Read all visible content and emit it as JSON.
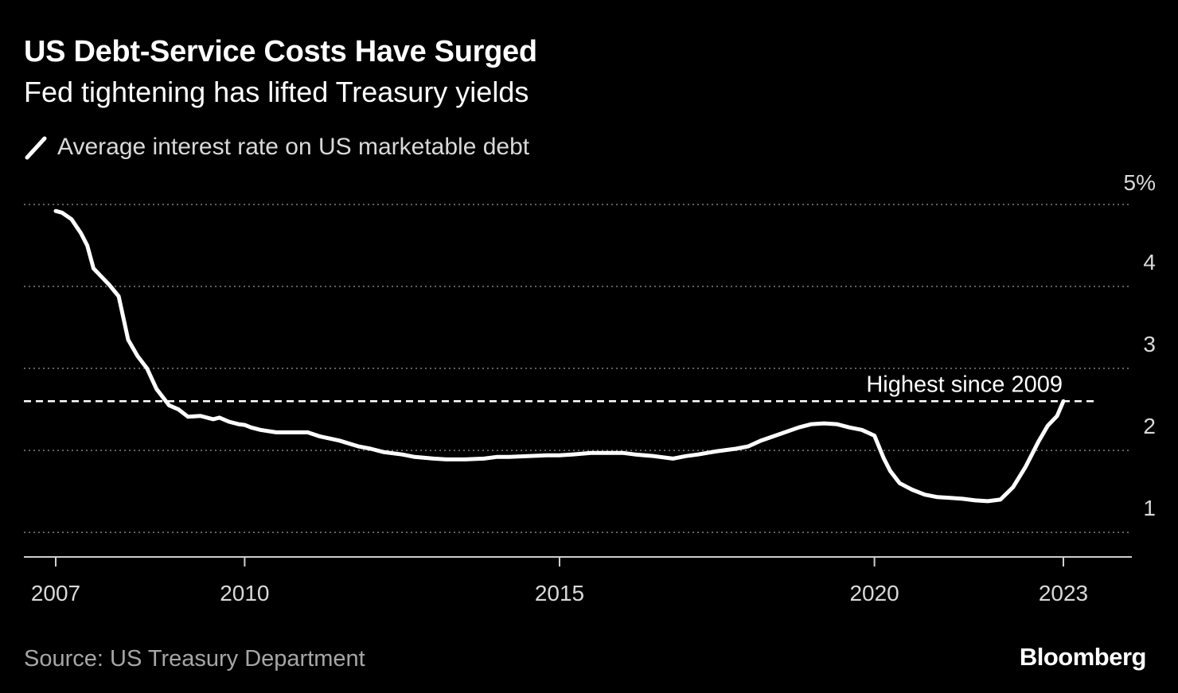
{
  "header": {
    "title": "US Debt-Service Costs Have Surged",
    "subtitle": "Fed tightening has lifted Treasury yields"
  },
  "legend": {
    "label": "Average interest rate on US marketable debt"
  },
  "footer": {
    "source": "Source: US Treasury Department",
    "brand": "Bloomberg"
  },
  "colors": {
    "background": "#000000",
    "line": "#ffffff",
    "grid": "#808080",
    "text": "#d9d9d9",
    "source_text": "#a6a6a6"
  },
  "chart_data": {
    "type": "line",
    "title": "US Debt-Service Costs Have Surged",
    "subtitle": "Fed tightening has lifted Treasury yields",
    "xlim": [
      2007,
      2023.5
    ],
    "ylim": [
      0.7,
      5
    ],
    "x_ticks": [
      {
        "value": 2007,
        "label": "2007"
      },
      {
        "value": 2010,
        "label": "2010"
      },
      {
        "value": 2015,
        "label": "2015"
      },
      {
        "value": 2020,
        "label": "2020"
      },
      {
        "value": 2023,
        "label": "2023"
      }
    ],
    "y_ticks": [
      {
        "value": 5,
        "label": "5%"
      },
      {
        "value": 4,
        "label": "4"
      },
      {
        "value": 3,
        "label": "3"
      },
      {
        "value": 2,
        "label": "2"
      },
      {
        "value": 1,
        "label": "1"
      }
    ],
    "grid": "horizontal-dotted",
    "reference_line": {
      "value": 2.6,
      "label": "Highest since 2009"
    },
    "series": [
      {
        "name": "Average interest rate on US marketable debt",
        "x": [
          2007.0,
          2007.1,
          2007.25,
          2007.4,
          2007.5,
          2007.6,
          2007.75,
          2007.85,
          2008.0,
          2008.15,
          2008.3,
          2008.45,
          2008.6,
          2008.8,
          2008.95,
          2009.1,
          2009.3,
          2009.5,
          2009.6,
          2009.75,
          2009.9,
          2010.0,
          2010.1,
          2010.25,
          2010.5,
          2010.8,
          2011.0,
          2011.2,
          2011.5,
          2011.8,
          2012.0,
          2012.2,
          2012.5,
          2012.7,
          2013.0,
          2013.2,
          2013.5,
          2013.8,
          2014.0,
          2014.2,
          2014.5,
          2014.8,
          2015.0,
          2015.2,
          2015.5,
          2015.8,
          2016.0,
          2016.2,
          2016.5,
          2016.8,
          2017.0,
          2017.2,
          2017.5,
          2017.8,
          2018.0,
          2018.2,
          2018.5,
          2018.8,
          2019.0,
          2019.2,
          2019.4,
          2019.6,
          2019.8,
          2020.0,
          2020.15,
          2020.25,
          2020.4,
          2020.6,
          2020.8,
          2021.0,
          2021.2,
          2021.4,
          2021.6,
          2021.8,
          2022.0,
          2022.2,
          2022.4,
          2022.6,
          2022.75,
          2022.9,
          2023.0
        ],
        "y": [
          4.92,
          4.9,
          4.82,
          4.65,
          4.5,
          4.22,
          4.1,
          4.02,
          3.88,
          3.35,
          3.15,
          3.0,
          2.75,
          2.55,
          2.5,
          2.41,
          2.42,
          2.38,
          2.4,
          2.35,
          2.32,
          2.31,
          2.28,
          2.25,
          2.22,
          2.22,
          2.22,
          2.17,
          2.12,
          2.05,
          2.02,
          1.98,
          1.95,
          1.92,
          1.9,
          1.89,
          1.89,
          1.9,
          1.92,
          1.92,
          1.93,
          1.94,
          1.94,
          1.95,
          1.97,
          1.97,
          1.97,
          1.95,
          1.93,
          1.9,
          1.93,
          1.95,
          1.99,
          2.02,
          2.05,
          2.12,
          2.2,
          2.28,
          2.32,
          2.33,
          2.32,
          2.28,
          2.25,
          2.18,
          1.9,
          1.75,
          1.6,
          1.52,
          1.46,
          1.43,
          1.42,
          1.41,
          1.39,
          1.38,
          1.4,
          1.55,
          1.8,
          2.1,
          2.3,
          2.42,
          2.6
        ]
      }
    ]
  }
}
